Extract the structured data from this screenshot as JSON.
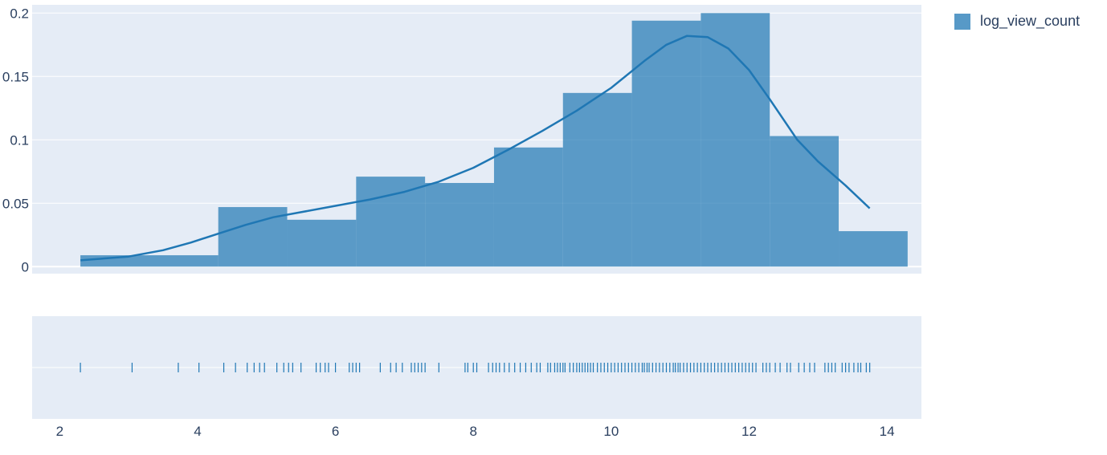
{
  "chart_data": {
    "type": "bar",
    "series": [
      {
        "name": "log_view_count",
        "color": "#1f77b4",
        "bins": [
          {
            "x0": 2.3,
            "x1": 4.3,
            "value": 0.009
          },
          {
            "x0": 4.3,
            "x1": 5.3,
            "value": 0.047
          },
          {
            "x0": 5.3,
            "x1": 6.3,
            "value": 0.037
          },
          {
            "x0": 6.3,
            "x1": 7.3,
            "value": 0.071
          },
          {
            "x0": 7.3,
            "x1": 8.3,
            "value": 0.066
          },
          {
            "x0": 8.3,
            "x1": 9.3,
            "value": 0.094
          },
          {
            "x0": 9.3,
            "x1": 10.3,
            "value": 0.137
          },
          {
            "x0": 10.3,
            "x1": 11.3,
            "value": 0.194
          },
          {
            "x0": 11.3,
            "x1": 12.3,
            "value": 0.2
          },
          {
            "x0": 12.3,
            "x1": 13.3,
            "value": 0.103
          },
          {
            "x0": 13.3,
            "x1": 14.3,
            "value": 0.028
          }
        ],
        "kde": {
          "x": [
            2.3,
            3.0,
            3.5,
            3.9,
            4.3,
            4.7,
            5.1,
            5.5,
            6.0,
            6.5,
            7.0,
            7.5,
            8.0,
            8.5,
            9.0,
            9.5,
            10.0,
            10.5,
            10.8,
            11.1,
            11.4,
            11.7,
            12.0,
            12.3,
            12.7,
            13.0,
            13.4,
            13.75
          ],
          "y": [
            0.005,
            0.008,
            0.013,
            0.019,
            0.026,
            0.033,
            0.039,
            0.043,
            0.048,
            0.053,
            0.059,
            0.067,
            0.078,
            0.092,
            0.107,
            0.123,
            0.141,
            0.163,
            0.175,
            0.182,
            0.181,
            0.172,
            0.155,
            0.132,
            0.1,
            0.083,
            0.064,
            0.046
          ]
        },
        "rug": [
          2.3,
          3.05,
          3.72,
          4.02,
          4.38,
          4.55,
          4.72,
          4.82,
          4.9,
          4.97,
          5.15,
          5.25,
          5.32,
          5.38,
          5.5,
          5.72,
          5.78,
          5.85,
          5.9,
          6.0,
          6.2,
          6.25,
          6.3,
          6.35,
          6.65,
          6.8,
          6.88,
          6.97,
          7.1,
          7.15,
          7.2,
          7.25,
          7.3,
          7.5,
          7.88,
          7.92,
          8.0,
          8.05,
          8.22,
          8.28,
          8.33,
          8.38,
          8.45,
          8.52,
          8.6,
          8.68,
          8.76,
          8.84,
          8.92,
          8.97,
          9.08,
          9.12,
          9.18,
          9.22,
          9.26,
          9.3,
          9.33,
          9.4,
          9.45,
          9.5,
          9.54,
          9.58,
          9.62,
          9.66,
          9.7,
          9.74,
          9.8,
          9.85,
          9.9,
          9.95,
          10.0,
          10.05,
          10.1,
          10.15,
          10.2,
          10.25,
          10.3,
          10.35,
          10.4,
          10.45,
          10.48,
          10.52,
          10.55,
          10.6,
          10.65,
          10.7,
          10.75,
          10.8,
          10.85,
          10.9,
          10.93,
          10.97,
          11.0,
          11.05,
          11.1,
          11.15,
          11.2,
          11.25,
          11.3,
          11.35,
          11.4,
          11.45,
          11.5,
          11.55,
          11.6,
          11.65,
          11.7,
          11.75,
          11.8,
          11.85,
          11.9,
          11.95,
          12.0,
          12.05,
          12.1,
          12.2,
          12.25,
          12.3,
          12.38,
          12.45,
          12.55,
          12.6,
          12.72,
          12.8,
          12.88,
          12.95,
          13.1,
          13.15,
          13.2,
          13.25,
          13.35,
          13.4,
          13.45,
          13.52,
          13.58,
          13.62,
          13.7,
          13.75
        ]
      }
    ],
    "xlim": [
      1.6,
      14.5
    ],
    "ylim": [
      -0.0055,
      0.2065
    ],
    "x_ticks": [
      "2",
      "4",
      "6",
      "8",
      "10",
      "12",
      "14"
    ],
    "y_ticks": [
      "0",
      "0.05",
      "0.1",
      "0.15",
      "0.2"
    ],
    "grid": true,
    "legend_position": "top-right"
  },
  "legend": {
    "label": "log_view_count",
    "color": "#1f77b4"
  }
}
